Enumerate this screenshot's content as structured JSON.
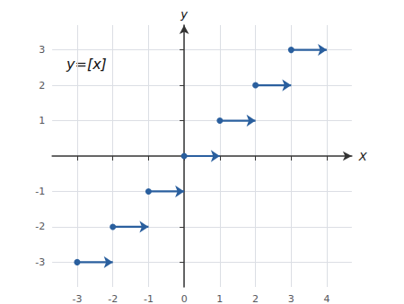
{
  "chart_data": {
    "type": "segments",
    "annotations": [
      "y=[x]"
    ],
    "xlabel": "X",
    "ylabel": "y",
    "color": "#2a5f9e",
    "marker": "circle",
    "segments": [
      {
        "x_start": 3.0,
        "x_end": 4.0,
        "y": 3
      },
      {
        "x_start": 2.0,
        "x_end": 3.0,
        "y": 2
      },
      {
        "x_start": 1.0,
        "x_end": 2.0,
        "y": 1
      },
      {
        "x_start": 0.0,
        "x_end": 1.0,
        "y": 0
      },
      {
        "x_start": -1.0,
        "x_end": 0.0,
        "y": -1
      },
      {
        "x_start": -2.0,
        "x_end": -1.0,
        "y": -2
      },
      {
        "x_start": -3.0,
        "x_end": -2.0,
        "y": -3
      }
    ],
    "xlim": [
      -3.7,
      4.7
    ],
    "ylim": [
      -3.7,
      3.7
    ],
    "xticks": [
      -3,
      -2,
      -1,
      0,
      1,
      2,
      3,
      4
    ],
    "yticks": [
      -3,
      -2,
      -1,
      1,
      2,
      3
    ],
    "grid": true
  }
}
